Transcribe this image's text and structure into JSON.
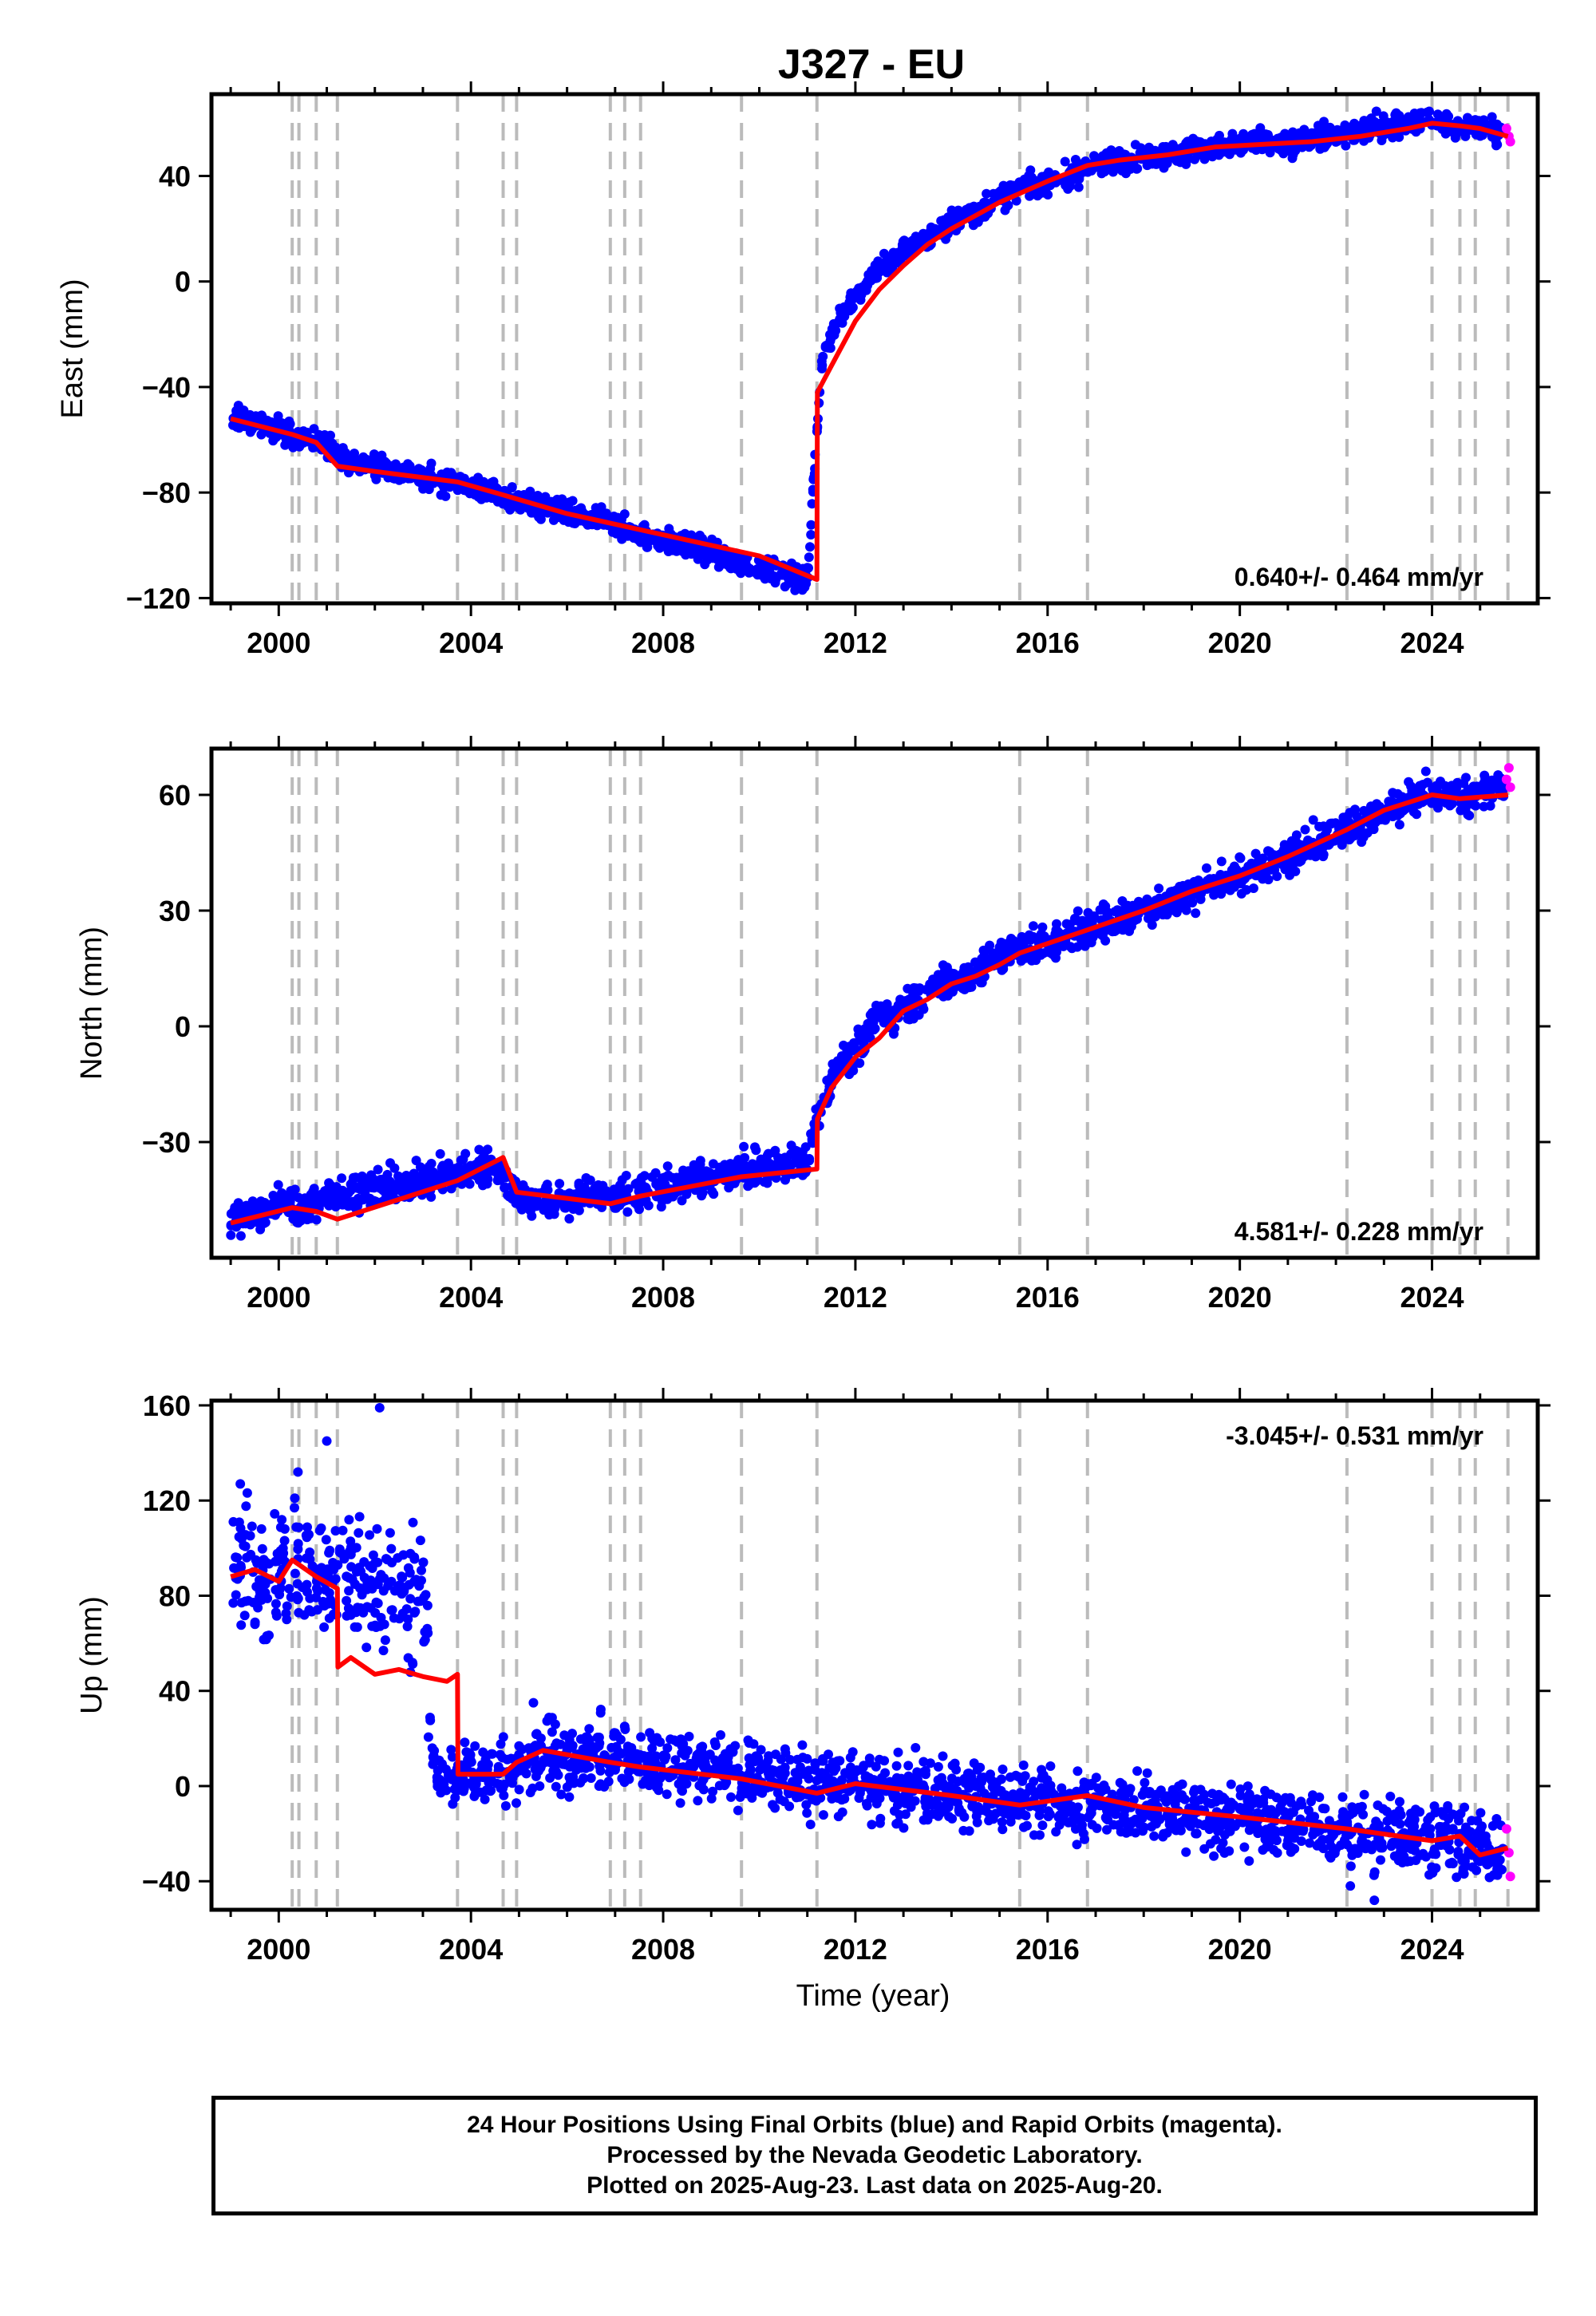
{
  "title": "J327 - EU",
  "xlabel": "Time (year)",
  "caption": {
    "line1": "24 Hour Positions Using Final Orbits (blue) and Rapid Orbits (magenta).",
    "line2": "Processed by the Nevada Geodetic Laboratory.",
    "line3": "Plotted on 2025-Aug-23. Last data on 2025-Aug-20."
  },
  "colors": {
    "final_orbits": "#0000ff",
    "rapid_orbits": "#ff00ff",
    "model_fit": "#ff0000",
    "event_lines": "#bbbbbb",
    "axes": "#000000"
  },
  "event_lines_years": [
    2000.28,
    2000.42,
    2000.78,
    2001.22,
    2003.72,
    2004.67,
    2004.95,
    2006.9,
    2007.2,
    2007.53,
    2009.63,
    2011.2,
    2015.42,
    2016.83,
    2022.23,
    2024.0,
    2024.58,
    2024.9,
    2025.58
  ],
  "chart_data": [
    {
      "type": "scatter",
      "id": "east",
      "ylabel": "East (mm)",
      "xlim": [
        1998.6,
        2026.2
      ],
      "ylim": [
        -122,
        71
      ],
      "xticks": [
        2000,
        2004,
        2008,
        2012,
        2016,
        2020,
        2024
      ],
      "yticks": [
        -120,
        -80,
        -40,
        0,
        40
      ],
      "grid": false,
      "rate_label": "0.640+/- 0.464 mm/yr",
      "rate_label_position": "bottom-right",
      "series": [
        {
          "name": "Final Orbits (blue)",
          "color": "#0000ff",
          "x": [
            1999.0,
            1999.5,
            2000.0,
            2000.5,
            2001.0,
            2001.5,
            2002.0,
            2002.5,
            2003.0,
            2003.5,
            2004.0,
            2004.5,
            2005.0,
            2005.5,
            2006.0,
            2006.5,
            2007.0,
            2007.5,
            2008.0,
            2008.5,
            2009.0,
            2009.5,
            2010.0,
            2010.5,
            2011.0,
            2011.3,
            2011.6,
            2012.0,
            2012.5,
            2013.0,
            2013.5,
            2014.0,
            2014.5,
            2015.0,
            2015.5,
            2016.0,
            2016.5,
            2017.0,
            2017.5,
            2018.0,
            2018.5,
            2019.0,
            2019.5,
            2020.0,
            2020.5,
            2021.0,
            2021.5,
            2022.0,
            2022.5,
            2023.0,
            2023.5,
            2024.0,
            2024.5,
            2025.0,
            2025.5
          ],
          "y": [
            -51,
            -54,
            -56,
            -60,
            -62,
            -68,
            -70,
            -72,
            -74,
            -76,
            -77,
            -80,
            -83,
            -86,
            -88,
            -90,
            -92,
            -96,
            -98,
            -100,
            -103,
            -106,
            -108,
            -111,
            -113,
            -30,
            -15,
            -6,
            5,
            12,
            16,
            22,
            26,
            32,
            35,
            38,
            40,
            44,
            46,
            47,
            48,
            50,
            51,
            52,
            53,
            52,
            54,
            55,
            57,
            59,
            60,
            61,
            58,
            59,
            56
          ]
        },
        {
          "name": "Rapid Orbits (magenta)",
          "color": "#ff00ff",
          "x": [
            2025.55,
            2025.6,
            2025.63
          ],
          "y": [
            58,
            55,
            53
          ]
        },
        {
          "name": "Model",
          "color": "#ff0000",
          "x": [
            1999.0,
            2000.28,
            2000.78,
            2001.22,
            2002.0,
            2003.72,
            2004.5,
            2006.0,
            2008.0,
            2010.0,
            2011.2,
            2011.21,
            2011.5,
            2012.0,
            2012.5,
            2013.0,
            2013.5,
            2014.0,
            2014.5,
            2015.0,
            2015.5,
            2016.0,
            2016.83,
            2017.5,
            2018.5,
            2019.5,
            2020.5,
            2021.5,
            2022.5,
            2023.5,
            2024.0,
            2024.58,
            2025.0,
            2025.58
          ],
          "y": [
            -52,
            -58,
            -61,
            -70,
            -72,
            -76,
            -80,
            -88,
            -96,
            -104,
            -113,
            -42,
            -32,
            -15,
            -3,
            6,
            14,
            20,
            25,
            30,
            34,
            38,
            44,
            46,
            48,
            51,
            52,
            53,
            55,
            58,
            60,
            59,
            58,
            55
          ]
        }
      ]
    },
    {
      "type": "scatter",
      "id": "north",
      "ylabel": "North (mm)",
      "xlim": [
        1998.6,
        2026.2
      ],
      "ylim": [
        -60,
        72
      ],
      "xticks": [
        2000,
        2004,
        2008,
        2012,
        2016,
        2020,
        2024
      ],
      "yticks": [
        -30,
        0,
        30,
        60
      ],
      "grid": false,
      "rate_label": "4.581+/- 0.228 mm/yr",
      "rate_label_position": "bottom-right",
      "series": [
        {
          "name": "Final Orbits (blue)",
          "color": "#0000ff",
          "x": [
            1999.0,
            1999.5,
            2000.0,
            2000.5,
            2001.0,
            2001.5,
            2002.0,
            2002.5,
            2003.0,
            2003.5,
            2004.0,
            2004.5,
            2005.0,
            2005.5,
            2006.0,
            2006.5,
            2007.0,
            2007.5,
            2008.0,
            2008.5,
            2009.0,
            2009.5,
            2010.0,
            2010.5,
            2011.0,
            2011.3,
            2011.6,
            2012.0,
            2012.5,
            2013.0,
            2013.5,
            2014.0,
            2014.5,
            2015.0,
            2015.5,
            2016.0,
            2016.5,
            2017.0,
            2017.5,
            2018.0,
            2018.5,
            2019.0,
            2019.5,
            2020.0,
            2020.5,
            2021.0,
            2021.5,
            2022.0,
            2022.5,
            2023.0,
            2023.5,
            2024.0,
            2024.5,
            2025.0,
            2025.5
          ],
          "y": [
            -50,
            -49,
            -46,
            -47,
            -44,
            -43,
            -42,
            -41,
            -40,
            -39,
            -37,
            -36,
            -44,
            -46,
            -45,
            -44,
            -45,
            -43,
            -42,
            -40,
            -39,
            -38,
            -37,
            -36,
            -35,
            -20,
            -10,
            -6,
            2,
            5,
            9,
            12,
            14,
            18,
            20,
            22,
            24,
            26,
            28,
            30,
            32,
            35,
            37,
            39,
            41,
            44,
            47,
            50,
            53,
            55,
            58,
            60,
            59,
            61,
            62
          ]
        },
        {
          "name": "Rapid Orbits (magenta)",
          "color": "#ff00ff",
          "x": [
            2025.55,
            2025.6,
            2025.63
          ],
          "y": [
            64,
            67,
            62
          ]
        },
        {
          "name": "Model",
          "color": "#ff0000",
          "x": [
            1999.0,
            2000.28,
            2000.78,
            2001.22,
            2003.72,
            2004.67,
            2004.95,
            2006.9,
            2007.53,
            2009.63,
            2011.2,
            2011.21,
            2011.5,
            2012.0,
            2012.5,
            2013.0,
            2013.5,
            2014.0,
            2014.5,
            2015.0,
            2015.42,
            2016.83,
            2018.0,
            2019.0,
            2020.0,
            2021.0,
            2022.23,
            2023.0,
            2024.0,
            2024.58,
            2025.58
          ],
          "y": [
            -51,
            -47,
            -48,
            -50,
            -40,
            -34,
            -43,
            -46,
            -44,
            -39,
            -37,
            -24,
            -16,
            -8,
            -3,
            4,
            7,
            11,
            13,
            16,
            19,
            25,
            30,
            35,
            39,
            44,
            51,
            56,
            60,
            59,
            60
          ]
        }
      ]
    },
    {
      "type": "scatter",
      "id": "up",
      "ylabel": "Up (mm)",
      "xlim": [
        1998.6,
        2026.2
      ],
      "ylim": [
        -52,
        162
      ],
      "xticks": [
        2000,
        2004,
        2008,
        2012,
        2016,
        2020,
        2024
      ],
      "yticks": [
        -40,
        0,
        40,
        80,
        120,
        160
      ],
      "grid": false,
      "rate_label": "-3.045+/- 0.531 mm/yr",
      "rate_label_position": "top-right",
      "series": [
        {
          "name": "Final Orbits (blue)",
          "color": "#0000ff",
          "x": [
            1999.0,
            1999.3,
            1999.6,
            2000.0,
            2000.3,
            2000.6,
            2001.0,
            2001.3,
            2001.6,
            2002.0,
            2002.3,
            2002.6,
            2003.0,
            2003.2,
            2003.5,
            2004.0,
            2004.5,
            2005.0,
            2005.5,
            2006.0,
            2006.5,
            2007.0,
            2007.5,
            2008.0,
            2008.5,
            2009.0,
            2009.5,
            2010.0,
            2010.5,
            2011.0,
            2011.5,
            2012.0,
            2012.5,
            2013.0,
            2013.5,
            2014.0,
            2014.5,
            2015.0,
            2015.5,
            2016.0,
            2016.5,
            2017.0,
            2017.5,
            2018.0,
            2018.5,
            2019.0,
            2019.5,
            2020.0,
            2020.5,
            2021.0,
            2021.5,
            2022.0,
            2022.5,
            2023.0,
            2023.5,
            2024.0,
            2024.5,
            2025.0,
            2025.5
          ],
          "y": [
            90,
            94,
            86,
            88,
            96,
            92,
            84,
            90,
            86,
            82,
            85,
            80,
            82,
            8,
            4,
            6,
            5,
            10,
            12,
            12,
            13,
            12,
            10,
            11,
            9,
            8,
            6,
            5,
            3,
            2,
            1,
            0,
            -1,
            -2,
            -3,
            -3,
            -4,
            -5,
            -6,
            -6,
            -7,
            -8,
            -9,
            -10,
            -11,
            -12,
            -13,
            -14,
            -15,
            -16,
            -17,
            -18,
            -19,
            -20,
            -21,
            -22,
            -22,
            -24,
            -26
          ]
        },
        {
          "name": "Rapid Orbits (magenta)",
          "color": "#ff00ff",
          "x": [
            2025.55,
            2025.6,
            2025.63
          ],
          "y": [
            -18,
            -28,
            -38
          ]
        },
        {
          "name": "Model",
          "color": "#ff0000",
          "x": [
            1999.0,
            1999.5,
            2000.0,
            2000.28,
            2000.78,
            2001.22,
            2001.23,
            2001.5,
            2002.0,
            2002.5,
            2003.0,
            2003.5,
            2003.72,
            2003.73,
            2004.67,
            2004.95,
            2005.5,
            2006.9,
            2007.53,
            2009.63,
            2011.2,
            2012.0,
            2014.0,
            2015.42,
            2016.83,
            2018.0,
            2020.0,
            2022.23,
            2024.0,
            2024.58,
            2025.0,
            2025.58
          ],
          "y": [
            88,
            91,
            86,
            95,
            88,
            83,
            50,
            54,
            47,
            49,
            46,
            44,
            47,
            5,
            5,
            10,
            15,
            10,
            8,
            3,
            -3,
            1,
            -4,
            -8,
            -4,
            -9,
            -13,
            -18,
            -23,
            -21,
            -29,
            -26
          ]
        }
      ]
    }
  ]
}
